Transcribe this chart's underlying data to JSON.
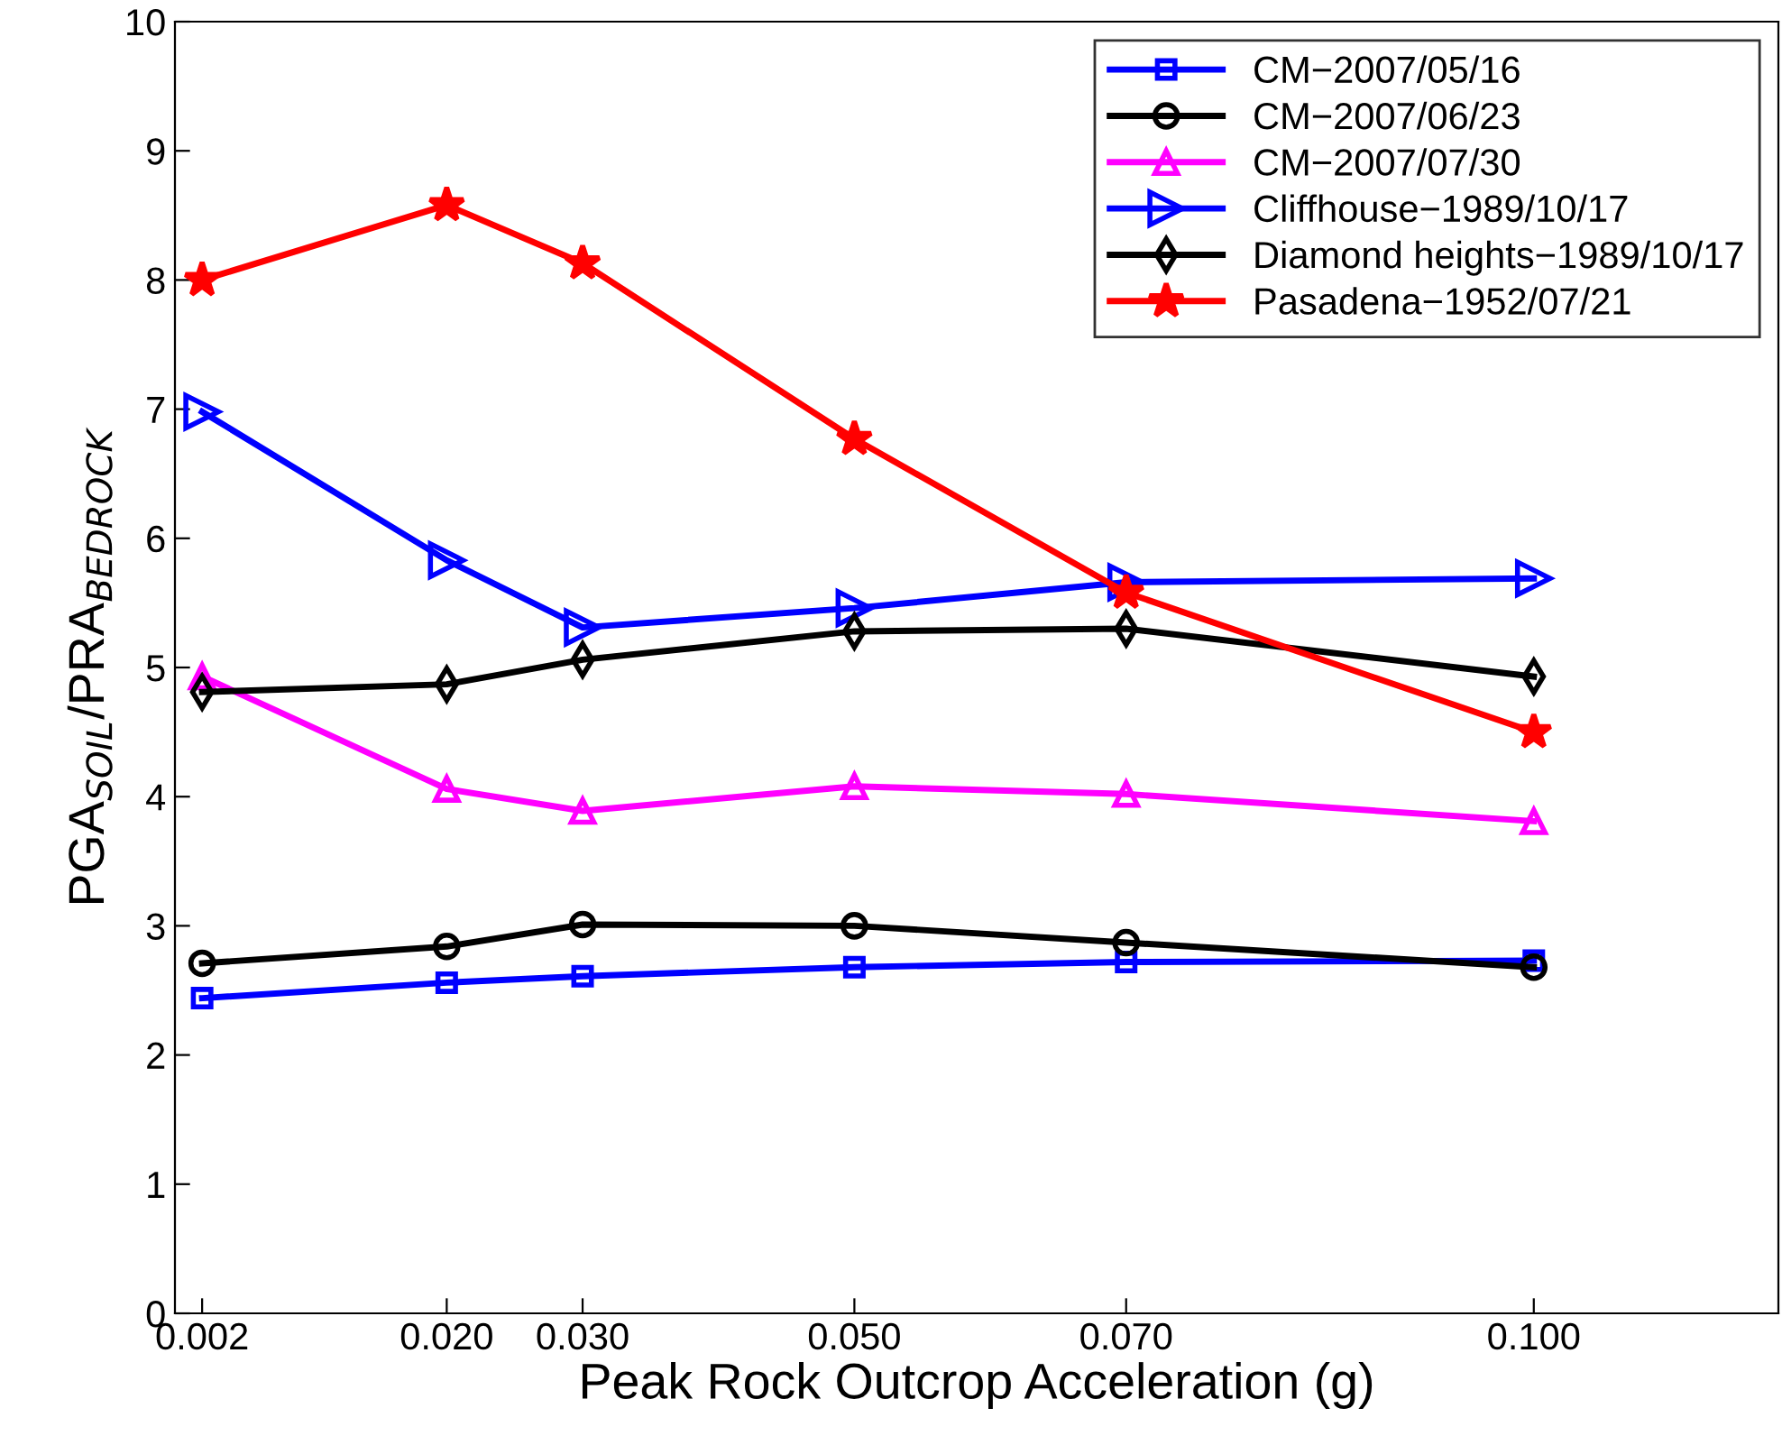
{
  "chart_data": {
    "type": "line",
    "xlabel": "Peak Rock Outcrop Acceleration (g)",
    "ylabel": "PGA$_{SOIL}$/PRA$_{BEDROCK}$",
    "x": [
      0.002,
      0.02,
      0.03,
      0.05,
      0.07,
      0.1
    ],
    "xlim": [
      0,
      0.118
    ],
    "xticks": [
      {
        "value": 0.002,
        "label": "0.002"
      },
      {
        "value": 0.02,
        "label": "0.020"
      },
      {
        "value": 0.03,
        "label": "0.030"
      },
      {
        "value": 0.05,
        "label": "0.050"
      },
      {
        "value": 0.07,
        "label": "0.070"
      },
      {
        "value": 0.1,
        "label": "0.100"
      }
    ],
    "ylim": [
      0,
      10
    ],
    "yticks": [
      0,
      1,
      2,
      3,
      4,
      5,
      6,
      7,
      8,
      9,
      10
    ],
    "grid": false,
    "legend": "top right",
    "line_style": "solid",
    "series": [
      {
        "name": "CM−2007/05/16",
        "color": "#0000ff",
        "marker": "square",
        "values": [
          2.44,
          2.56,
          2.61,
          2.68,
          2.72,
          2.73
        ]
      },
      {
        "name": "CM−2007/06/23",
        "color": "#000000",
        "marker": "circle",
        "values": [
          2.71,
          2.84,
          3.01,
          3.0,
          2.87,
          2.68
        ]
      },
      {
        "name": "CM−2007/07/30",
        "color": "#ff00ff",
        "marker": "triangle",
        "values": [
          4.93,
          4.06,
          3.89,
          4.08,
          4.02,
          3.81
        ]
      },
      {
        "name": "Cliffhouse−1989/10/17",
        "color": "#0000ff",
        "marker": "triangle-right",
        "values": [
          6.98,
          5.83,
          5.31,
          5.46,
          5.66,
          5.69
        ]
      },
      {
        "name": "Diamond heights−1989/10/17",
        "color": "#000000",
        "marker": "diamond",
        "values": [
          4.81,
          4.87,
          5.06,
          5.28,
          5.3,
          4.93
        ]
      },
      {
        "name": "Pasadena−1952/07/21",
        "color": "#ff0000",
        "marker": "star",
        "values": [
          8.0,
          8.58,
          8.13,
          6.77,
          5.58,
          4.5
        ]
      }
    ]
  }
}
